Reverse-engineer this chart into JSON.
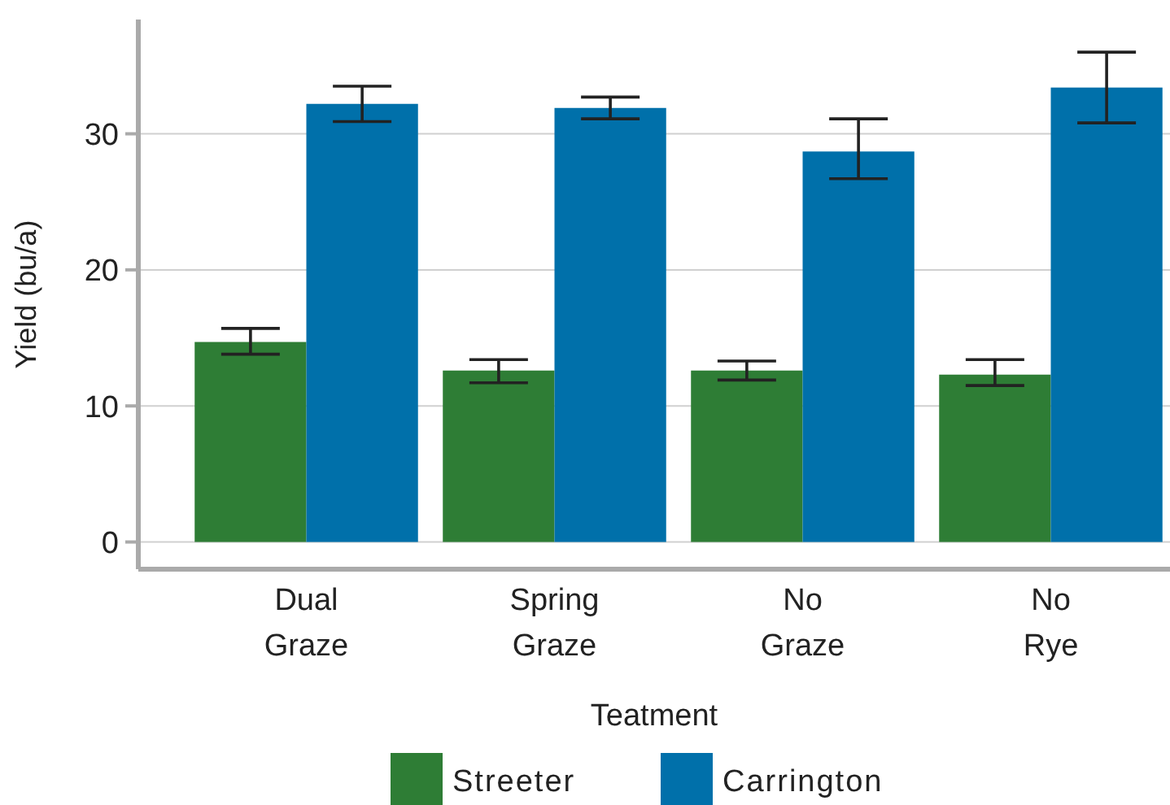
{
  "chart_data": {
    "type": "bar",
    "xlabel": "Teatment",
    "ylabel": "Yield (bu/a)",
    "categories": [
      "Dual Graze",
      "Spring Graze",
      "No Graze",
      "No Rye"
    ],
    "series": [
      {
        "name": "Streeter",
        "color": "#2e7d35",
        "values": [
          14.7,
          12.6,
          12.6,
          12.3
        ],
        "errors": [
          [
            13.8,
            15.7
          ],
          [
            11.7,
            13.4
          ],
          [
            11.9,
            13.3
          ],
          [
            11.5,
            13.4
          ]
        ]
      },
      {
        "name": "Carrington",
        "color": "#0070aa",
        "values": [
          32.2,
          31.9,
          28.7,
          33.4
        ],
        "errors": [
          [
            30.9,
            33.5
          ],
          [
            31.1,
            32.7
          ],
          [
            26.7,
            31.1
          ],
          [
            30.8,
            36.0
          ]
        ]
      }
    ],
    "ylim": [
      -2,
      38.4
    ],
    "yticks": [
      0,
      10,
      20,
      30
    ],
    "grid": "y",
    "legend": "bottom"
  }
}
